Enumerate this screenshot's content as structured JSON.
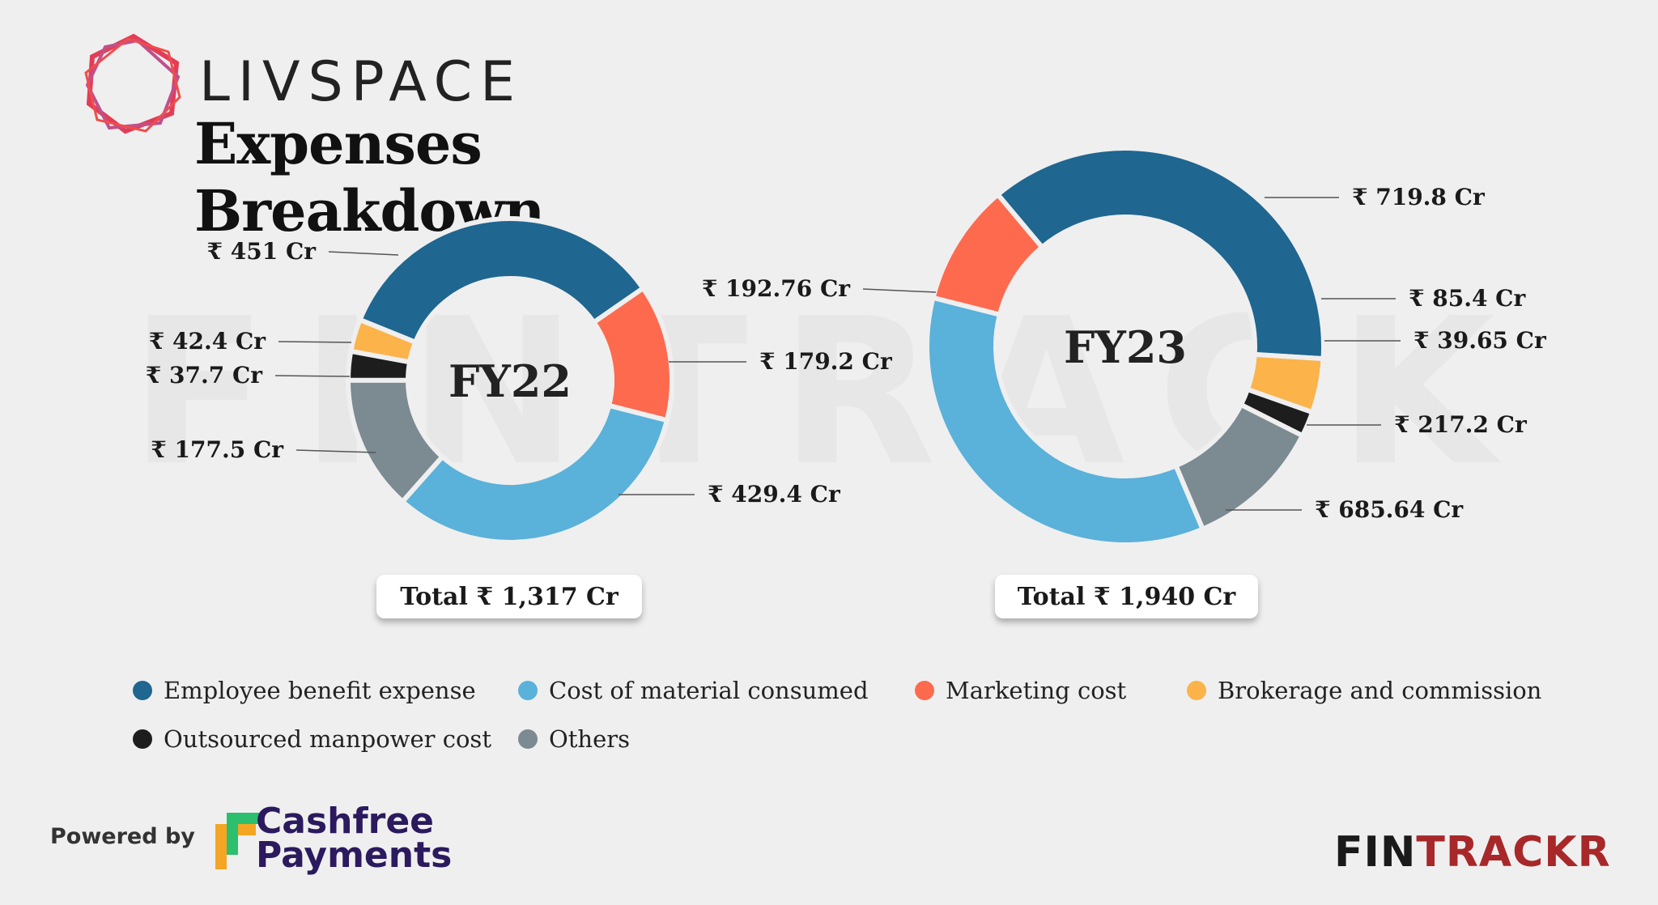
{
  "brand": {
    "name": "LIVSPACE"
  },
  "title": "Expenses Breakdown",
  "watermark": "FINTRACKR",
  "colors": {
    "employee": "#1f6690",
    "material": "#5ab1da",
    "marketing": "#fe6a4e",
    "brokerage": "#fbb34a",
    "outsourced": "#1d1d1d",
    "others": "#7c8a92"
  },
  "chart_data": [
    {
      "type": "pie",
      "center_label": "FY22",
      "total_label": "Total ₹ 1,317 Cr",
      "slices": [
        {
          "name": "Employee benefit expense",
          "value": 451,
          "label": "₹ 451 Cr"
        },
        {
          "name": "Marketing cost",
          "value": 179.2,
          "label": "₹ 179.2 Cr"
        },
        {
          "name": "Cost of material consumed",
          "value": 429.4,
          "label": "₹ 429.4 Cr"
        },
        {
          "name": "Others",
          "value": 177.5,
          "label": "₹ 177.5 Cr"
        },
        {
          "name": "Outsourced manpower cost",
          "value": 37.7,
          "label": "₹ 37.7 Cr"
        },
        {
          "name": "Brokerage and commission",
          "value": 42.4,
          "label": "₹ 42.4 Cr"
        }
      ]
    },
    {
      "type": "pie",
      "center_label": "FY23",
      "total_label": "Total ₹ 1,940 Cr",
      "slices": [
        {
          "name": "Employee benefit expense",
          "value": 719.8,
          "label": "₹ 719.8 Cr"
        },
        {
          "name": "Brokerage and commission",
          "value": 85.4,
          "label": "₹ 85.4 Cr"
        },
        {
          "name": "Outsourced manpower cost",
          "value": 39.65,
          "label": "₹ 39.65 Cr"
        },
        {
          "name": "Others",
          "value": 217.2,
          "label": "₹ 217.2 Cr"
        },
        {
          "name": "Cost of material consumed",
          "value": 685.64,
          "label": "₹ 685.64 Cr"
        },
        {
          "name": "Marketing cost",
          "value": 192.76,
          "label": "₹ 192.76 Cr"
        }
      ]
    }
  ],
  "legend": [
    {
      "label": "Employee benefit expense",
      "color": "#1f6690"
    },
    {
      "label": "Cost of material consumed",
      "color": "#5ab1da"
    },
    {
      "label": "Marketing cost",
      "color": "#fe6a4e"
    },
    {
      "label": "Brokerage and commission",
      "color": "#fbb34a"
    },
    {
      "label": "Outsourced manpower cost",
      "color": "#1d1d1d"
    },
    {
      "label": "Others",
      "color": "#7c8a92"
    }
  ],
  "footer": {
    "powered_by": "Powered by",
    "sponsor_line1": "Cashfree",
    "sponsor_line2": "Payments",
    "logo_left": "FIN",
    "logo_right": "TRACKR"
  }
}
